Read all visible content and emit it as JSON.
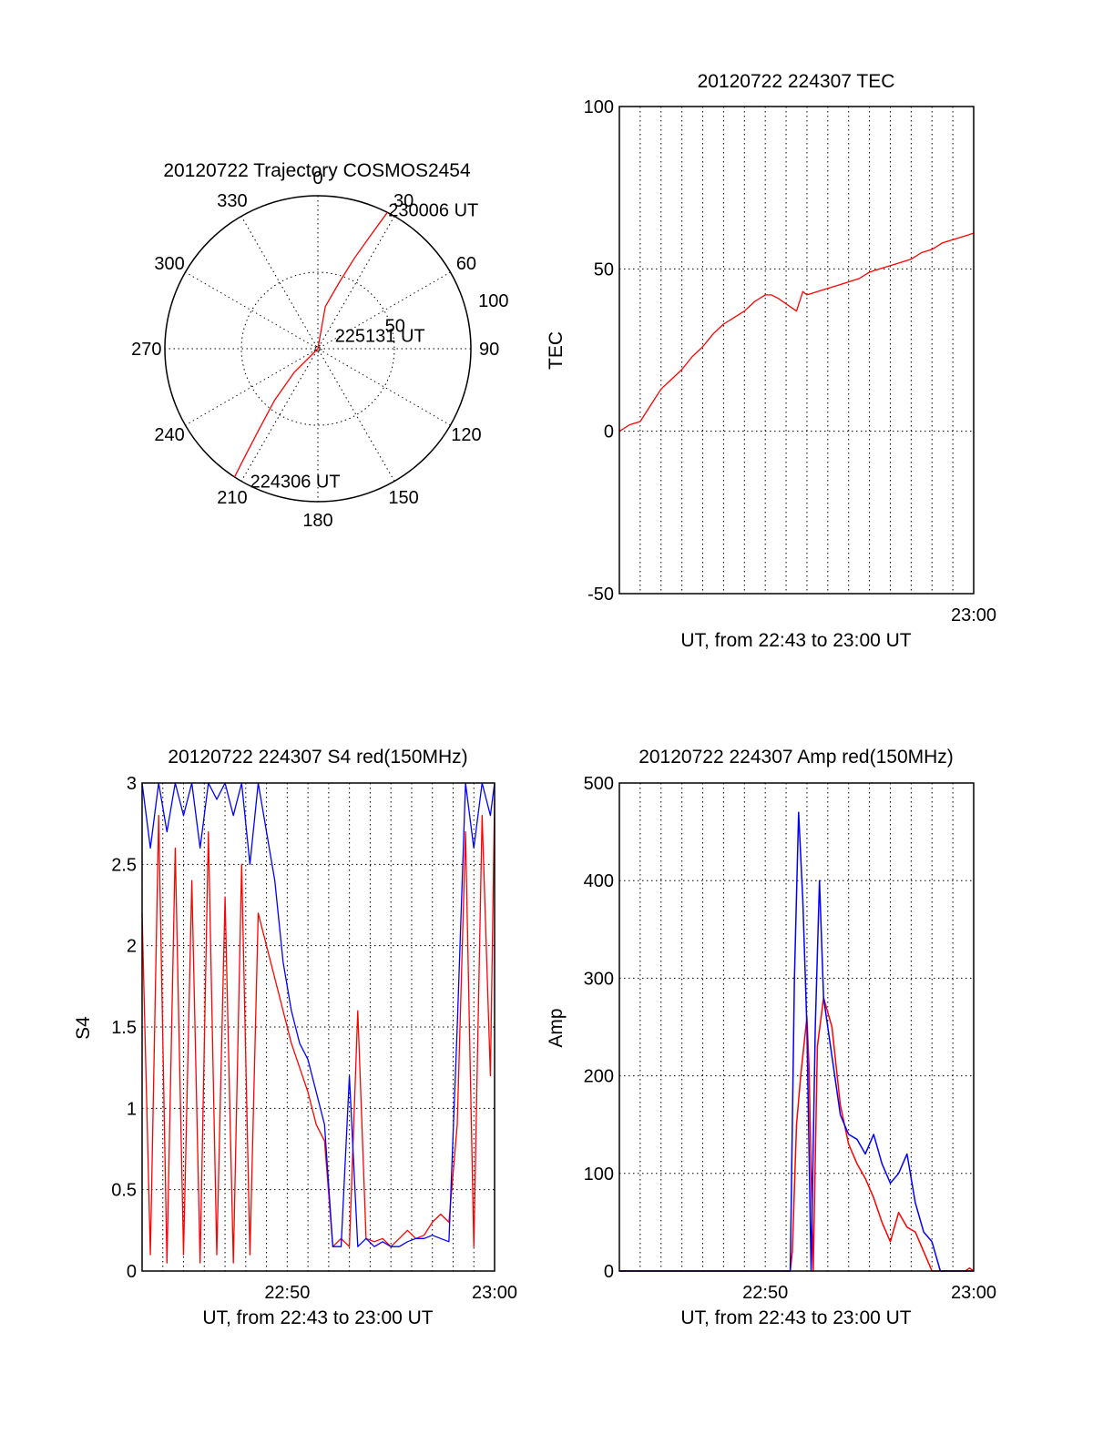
{
  "colors": {
    "red": "#ff0000",
    "blue": "#0000ff",
    "axis": "#000000"
  },
  "chart_data": [
    {
      "id": "polar",
      "type": "scatter",
      "title": "20120722 Trajectory COSMOS2454",
      "azimuth_labels": [
        "0",
        "30",
        "60",
        "90",
        "120",
        "150",
        "180",
        "210",
        "240",
        "270",
        "300",
        "330"
      ],
      "rings": [
        {
          "radius": 50,
          "label": "50"
        },
        {
          "radius": 100,
          "label": "100"
        }
      ],
      "track": {
        "color": "red",
        "points": [
          [
            27,
            100
          ],
          [
            25,
            82
          ],
          [
            22,
            64
          ],
          [
            18,
            46
          ],
          [
            10,
            28
          ],
          [
            0,
            0
          ],
          [
            225,
            22
          ],
          [
            220,
            44
          ],
          [
            216,
            66
          ],
          [
            214,
            86
          ],
          [
            213,
            100
          ]
        ]
      },
      "annotations": [
        {
          "text": "230006 UT",
          "azimuth": 28,
          "zenith": 98
        },
        {
          "text": "225131 UT",
          "azimuth": 68,
          "zenith": 12
        },
        {
          "text": "224306 UT",
          "azimuth": 206,
          "zenith": 101
        }
      ]
    },
    {
      "id": "tec",
      "type": "line",
      "title": "20120722 224307 TEC",
      "xlabel": "UT, from 22:43 to 23:00 UT",
      "ylabel": "TEC",
      "xlim": [
        0,
        17
      ],
      "ylim": [
        -50,
        100
      ],
      "yticks": [
        -50,
        0,
        50,
        100
      ],
      "ytick_labels": [
        "-50",
        "0",
        "50",
        "100"
      ],
      "xticks": [
        17
      ],
      "xtick_labels": [
        "23:00"
      ],
      "grid": true,
      "series": [
        {
          "color": "red",
          "x": [
            0,
            0.5,
            1,
            1.5,
            2,
            2.5,
            3,
            3.5,
            4,
            4.5,
            5,
            5.5,
            6,
            6.5,
            7,
            7.3,
            7.6,
            8.5,
            8.8,
            9,
            9.5,
            10,
            10.5,
            11,
            11.5,
            12,
            12.5,
            13,
            13.5,
            14,
            14.5,
            15,
            15.5,
            16,
            16.5,
            17
          ],
          "y": [
            0,
            2,
            3,
            8,
            13,
            16,
            19,
            23,
            26,
            30,
            33,
            35,
            37,
            40,
            42,
            42,
            41,
            37,
            43,
            42,
            43,
            44,
            45,
            46,
            47,
            49,
            50,
            51,
            52,
            53,
            55,
            56,
            58,
            59,
            60,
            61
          ]
        }
      ]
    },
    {
      "id": "s4",
      "type": "line",
      "title": "20120722 224307 S4 red(150MHz)",
      "xlabel": "UT, from 22:43 to 23:00 UT",
      "ylabel": "S4",
      "xlim": [
        0,
        17
      ],
      "ylim": [
        0,
        3
      ],
      "yticks": [
        0,
        0.5,
        1,
        1.5,
        2,
        2.5,
        3
      ],
      "ytick_labels": [
        "0",
        "0.5",
        "1",
        "1.5",
        "2",
        "2.5",
        "3"
      ],
      "xticks": [
        7,
        17
      ],
      "xtick_labels": [
        "22:50",
        "23:00"
      ],
      "grid": true,
      "series": [
        {
          "color": "red",
          "x": [
            0,
            0.4,
            0.8,
            1.2,
            1.6,
            2,
            2.4,
            2.8,
            3.2,
            3.6,
            4,
            4.4,
            4.8,
            5.2,
            5.6,
            6,
            6.4,
            6.8,
            7.2,
            7.6,
            8,
            8.4,
            8.8,
            9.2,
            9.6,
            10,
            10.4,
            10.8,
            11.2,
            11.6,
            12,
            12.4,
            12.8,
            13.2,
            13.6,
            14,
            14.4,
            14.8,
            15.2,
            15.6,
            16,
            16.4,
            16.8,
            17
          ],
          "y": [
            2.2,
            0.1,
            2.8,
            0.05,
            2.6,
            0.1,
            2.4,
            0.05,
            2.7,
            0.1,
            2.3,
            0.05,
            2.5,
            0.1,
            2.2,
            2.0,
            1.8,
            1.6,
            1.4,
            1.25,
            1.1,
            0.9,
            0.8,
            0.15,
            0.2,
            0.15,
            1.6,
            0.2,
            0.18,
            0.2,
            0.15,
            0.2,
            0.25,
            0.2,
            0.22,
            0.3,
            0.35,
            0.3,
            0.9,
            2.7,
            0.15,
            2.8,
            1.2,
            2.9
          ]
        },
        {
          "color": "blue",
          "x": [
            0,
            0.4,
            0.8,
            1.2,
            1.6,
            2,
            2.4,
            2.8,
            3.2,
            3.6,
            4,
            4.4,
            4.8,
            5.2,
            5.6,
            6,
            6.4,
            6.8,
            7.2,
            7.6,
            8,
            8.4,
            8.8,
            9.2,
            9.6,
            10,
            10.4,
            10.8,
            11.2,
            11.6,
            12,
            12.4,
            12.8,
            13.2,
            13.6,
            14,
            14.4,
            14.8,
            15.2,
            15.6,
            16,
            16.4,
            16.8,
            17
          ],
          "y": [
            3,
            2.6,
            3,
            2.7,
            3,
            2.8,
            3,
            2.6,
            3,
            2.9,
            3,
            2.8,
            3,
            2.5,
            3,
            2.7,
            2.4,
            1.9,
            1.6,
            1.4,
            1.3,
            1.1,
            0.9,
            0.15,
            0.15,
            1.2,
            0.15,
            0.2,
            0.15,
            0.18,
            0.15,
            0.15,
            0.18,
            0.2,
            0.2,
            0.22,
            0.2,
            0.18,
            1.5,
            3,
            2.6,
            3,
            2.8,
            3
          ]
        }
      ]
    },
    {
      "id": "amp",
      "type": "line",
      "title": "20120722 224307 Amp red(150MHz)",
      "xlabel": "UT, from 22:43 to 23:00 UT",
      "ylabel": "Amp",
      "xlim": [
        0,
        17
      ],
      "ylim": [
        0,
        500
      ],
      "yticks": [
        0,
        100,
        200,
        300,
        400,
        500
      ],
      "ytick_labels": [
        "0",
        "100",
        "200",
        "300",
        "400",
        "500"
      ],
      "xticks": [
        7,
        17
      ],
      "xtick_labels": [
        "22:50",
        "23:00"
      ],
      "grid": true,
      "series": [
        {
          "color": "red",
          "x": [
            0,
            7.5,
            8.2,
            8.3,
            8.5,
            8.7,
            9.0,
            9.1,
            9.3,
            9.5,
            9.8,
            10.2,
            10.6,
            11.0,
            11.4,
            11.8,
            12.2,
            12.6,
            13.0,
            13.4,
            13.8,
            14.2,
            14.6,
            15.0,
            16.0,
            16.6,
            16.8,
            17
          ],
          "y": [
            0,
            0,
            0,
            20,
            150,
            200,
            260,
            210,
            0,
            230,
            280,
            250,
            170,
            130,
            110,
            95,
            75,
            50,
            30,
            60,
            45,
            40,
            20,
            0,
            0,
            0,
            3,
            0
          ]
        },
        {
          "color": "blue",
          "x": [
            0,
            8.2,
            8.4,
            8.6,
            8.8,
            9.0,
            9.2,
            9.4,
            9.6,
            9.8,
            10.2,
            10.6,
            11.0,
            11.4,
            11.8,
            12.2,
            12.6,
            13.0,
            13.4,
            13.8,
            14.2,
            14.6,
            15.0,
            15.4,
            17
          ],
          "y": [
            0,
            0,
            300,
            470,
            380,
            250,
            0,
            250,
            400,
            280,
            220,
            160,
            140,
            135,
            120,
            140,
            110,
            90,
            100,
            120,
            70,
            40,
            30,
            0,
            0
          ]
        }
      ]
    }
  ]
}
